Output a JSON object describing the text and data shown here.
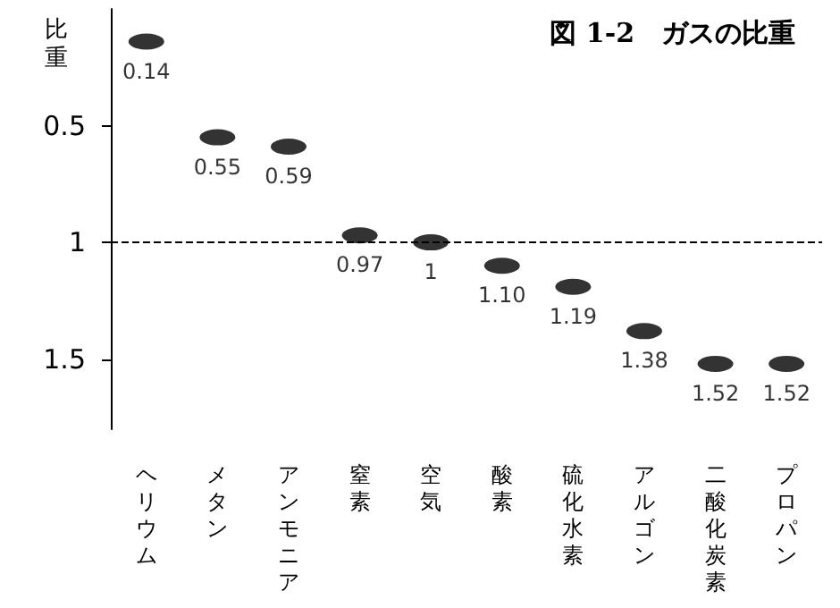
{
  "chart_data": {
    "type": "scatter",
    "title": "図 1-2　ガスの比重",
    "ylabel": "比重",
    "categories": [
      "ヘリウム",
      "メタン",
      "アンモニア",
      "窒素",
      "空気",
      "酸素",
      "硫化水素",
      "アルゴン",
      "二酸化炭素",
      "プロパン"
    ],
    "values": [
      0.14,
      0.55,
      0.59,
      0.97,
      1,
      1.1,
      1.19,
      1.38,
      1.52,
      1.52
    ],
    "value_labels": [
      "0.14",
      "0.55",
      "0.59",
      "0.97",
      "1",
      "1.10",
      "1.19",
      "1.38",
      "1.52",
      "1.52"
    ],
    "color": "#000000",
    "marker": "circle",
    "ylim": [
      1.8,
      0
    ],
    "yticks": [
      0.5,
      1,
      1.5
    ],
    "grid": false,
    "ref_lines": [
      {
        "axis": "y",
        "value": 1,
        "line_style": "dashed",
        "color": "#000000"
      }
    ]
  }
}
